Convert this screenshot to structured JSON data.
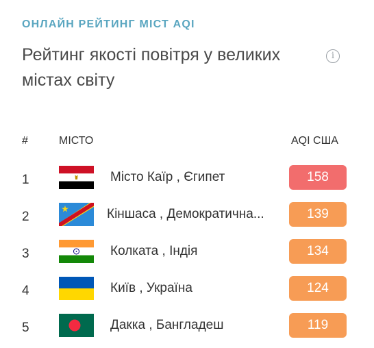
{
  "header": {
    "eyebrow": "ОНЛАЙН РЕЙТИНГ МІСТ AQI",
    "title": "Рейтинг якості повітря у великих містах світу",
    "info_icon": "info-icon"
  },
  "table": {
    "columns": {
      "rank": "#",
      "city": "МІСТО",
      "aqi": "AQI США"
    },
    "rows": [
      {
        "rank": "1",
        "city": "Місто Каїр , Єгипет",
        "aqi": "158",
        "flag": "egypt-flag-icon",
        "color": "#f26d6d"
      },
      {
        "rank": "2",
        "city": "Кіншаса , Демократична...",
        "aqi": "139",
        "flag": "dr-congo-flag-icon",
        "color": "#f79c55"
      },
      {
        "rank": "3",
        "city": "Колката , Індія",
        "aqi": "134",
        "flag": "india-flag-icon",
        "color": "#f79c55"
      },
      {
        "rank": "4",
        "city": "Київ , Україна",
        "aqi": "124",
        "flag": "ukraine-flag-icon",
        "color": "#f79c55"
      },
      {
        "rank": "5",
        "city": "Дакка , Бангладеш",
        "aqi": "119",
        "flag": "bangladesh-flag-icon",
        "color": "#f79c55"
      }
    ]
  }
}
